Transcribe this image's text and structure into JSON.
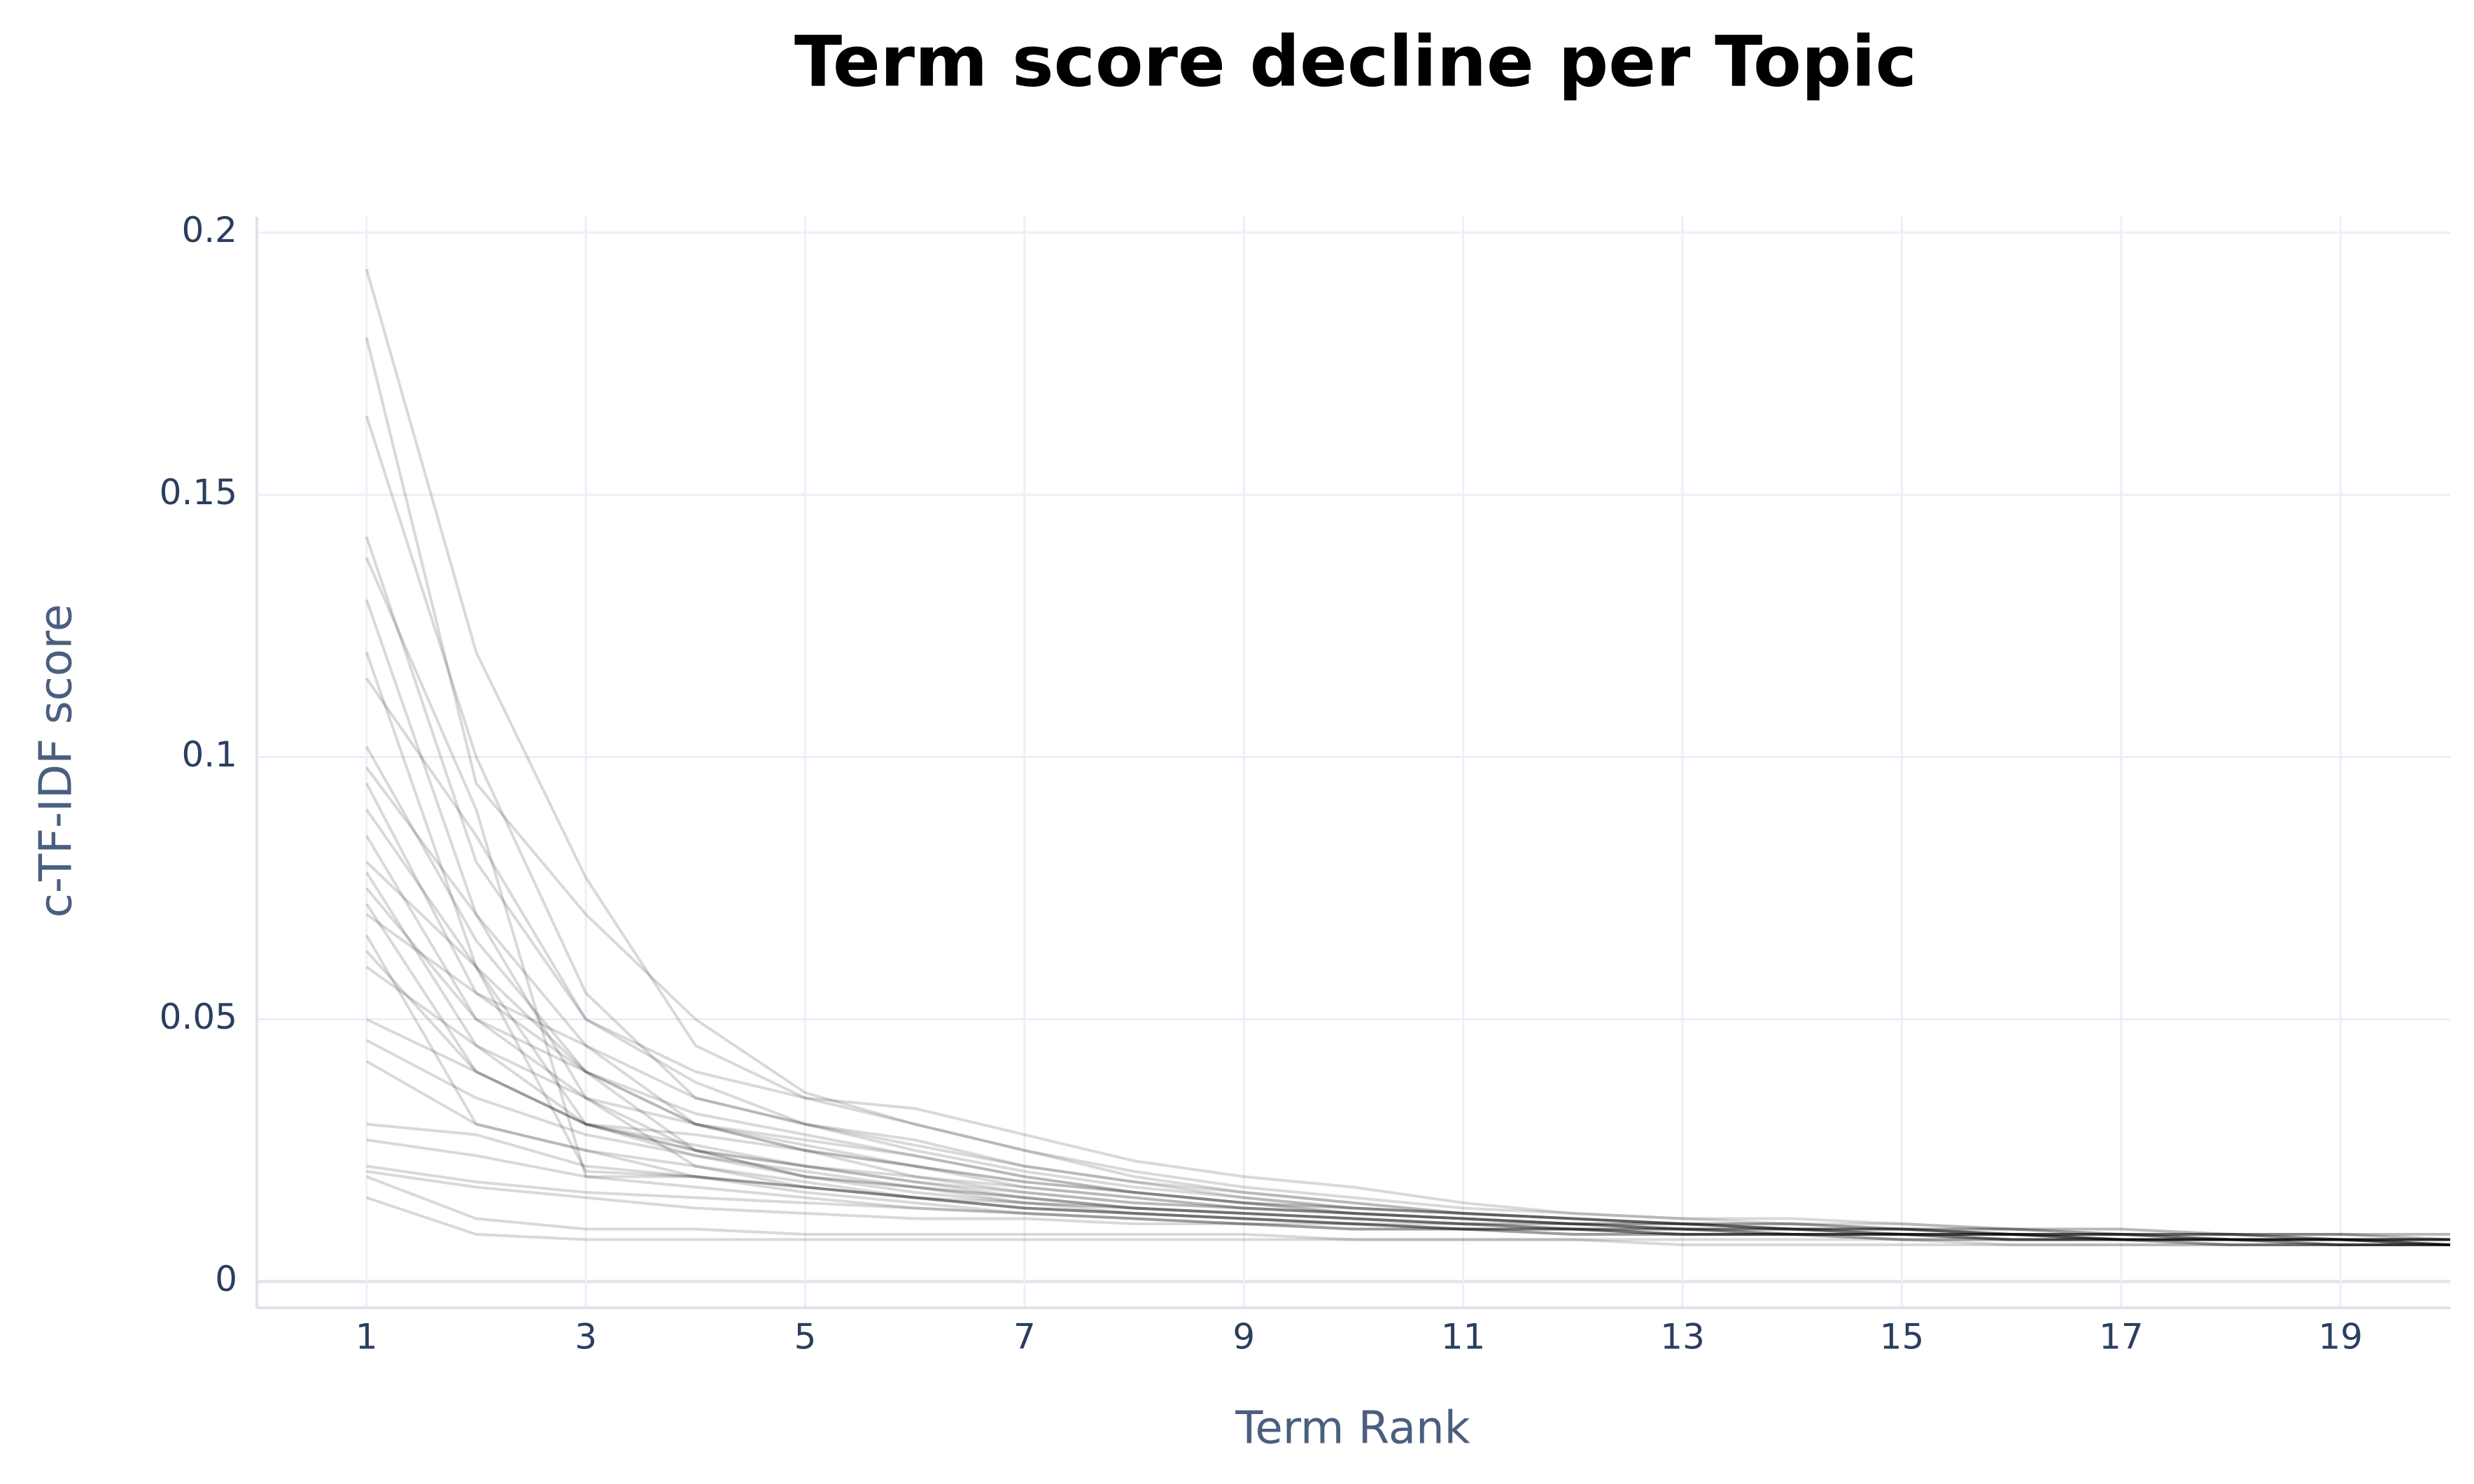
{
  "chart_data": {
    "type": "line",
    "title": "Term score decline per Topic",
    "x_label": "Term Rank",
    "y_label": "c-TF-IDF score",
    "x": [
      1,
      2,
      3,
      4,
      5,
      6,
      7,
      8,
      9,
      10,
      11,
      12,
      13,
      14,
      15,
      16,
      17,
      18,
      19,
      20
    ],
    "xlim": [
      0,
      20
    ],
    "xticks": [
      1,
      3,
      5,
      7,
      9,
      11,
      13,
      15,
      17,
      19
    ],
    "ylim": [
      -0.005,
      0.203
    ],
    "yticks": [
      0,
      0.05,
      0.1,
      0.15,
      0.2
    ],
    "grid": true,
    "series": [
      {
        "color": "rgba(0,0,0,0.15)",
        "values": [
          0.193,
          0.12,
          0.077,
          0.045,
          0.035,
          0.03,
          0.025,
          0.021,
          0.018,
          0.016,
          0.014,
          0.013,
          0.012,
          0.011,
          0.011,
          0.01,
          0.01,
          0.009,
          0.009,
          0.009
        ]
      },
      {
        "color": "rgba(0,0,0,0.15)",
        "values": [
          0.18,
          0.095,
          0.07,
          0.05,
          0.036,
          0.03,
          0.025,
          0.02,
          0.017,
          0.015,
          0.013,
          0.012,
          0.011,
          0.011,
          0.01,
          0.01,
          0.009,
          0.009,
          0.009,
          0.008
        ]
      },
      {
        "color": "rgba(0,0,0,0.15)",
        "values": [
          0.165,
          0.1,
          0.055,
          0.035,
          0.03,
          0.027,
          0.022,
          0.019,
          0.016,
          0.014,
          0.013,
          0.012,
          0.011,
          0.01,
          0.01,
          0.009,
          0.009,
          0.009,
          0.008,
          0.008
        ]
      },
      {
        "color": "rgba(0,0,0,0.15)",
        "values": [
          0.142,
          0.08,
          0.05,
          0.04,
          0.035,
          0.033,
          0.028,
          0.023,
          0.02,
          0.018,
          0.015,
          0.013,
          0.012,
          0.012,
          0.011,
          0.01,
          0.01,
          0.009,
          0.009,
          0.009
        ]
      },
      {
        "color": "rgba(0,0,0,0.15)",
        "values": [
          0.138,
          0.09,
          0.02,
          0.02,
          0.018,
          0.016,
          0.014,
          0.013,
          0.012,
          0.011,
          0.011,
          0.01,
          0.01,
          0.009,
          0.009,
          0.009,
          0.008,
          0.008,
          0.008,
          0.008
        ]
      },
      {
        "color": "rgba(0,0,0,0.15)",
        "values": [
          0.13,
          0.07,
          0.045,
          0.03,
          0.025,
          0.022,
          0.019,
          0.017,
          0.015,
          0.014,
          0.013,
          0.012,
          0.011,
          0.01,
          0.01,
          0.009,
          0.009,
          0.008,
          0.008,
          0.008
        ]
      },
      {
        "color": "rgba(0,0,0,0.15)",
        "values": [
          0.12,
          0.06,
          0.04,
          0.03,
          0.026,
          0.022,
          0.018,
          0.016,
          0.014,
          0.013,
          0.012,
          0.011,
          0.011,
          0.01,
          0.01,
          0.009,
          0.009,
          0.008,
          0.008,
          0.008
        ]
      },
      {
        "color": "rgba(0,0,0,0.15)",
        "values": [
          0.115,
          0.085,
          0.05,
          0.038,
          0.03,
          0.025,
          0.021,
          0.018,
          0.016,
          0.014,
          0.013,
          0.012,
          0.011,
          0.011,
          0.01,
          0.01,
          0.009,
          0.009,
          0.009,
          0.008
        ]
      },
      {
        "color": "rgba(0,0,0,0.15)",
        "values": [
          0.102,
          0.065,
          0.04,
          0.032,
          0.028,
          0.024,
          0.02,
          0.017,
          0.015,
          0.014,
          0.013,
          0.012,
          0.011,
          0.01,
          0.01,
          0.009,
          0.009,
          0.009,
          0.008,
          0.008
        ]
      },
      {
        "color": "rgba(0,0,0,0.15)",
        "values": [
          0.098,
          0.07,
          0.035,
          0.025,
          0.022,
          0.02,
          0.018,
          0.016,
          0.014,
          0.013,
          0.012,
          0.011,
          0.01,
          0.01,
          0.009,
          0.009,
          0.009,
          0.008,
          0.008,
          0.007
        ]
      },
      {
        "color": "rgba(0,0,0,0.15)",
        "values": [
          0.095,
          0.055,
          0.045,
          0.035,
          0.03,
          0.026,
          0.022,
          0.019,
          0.017,
          0.015,
          0.013,
          0.012,
          0.011,
          0.011,
          0.01,
          0.01,
          0.009,
          0.009,
          0.008,
          0.008
        ]
      },
      {
        "color": "rgba(0,0,0,0.15)",
        "values": [
          0.09,
          0.06,
          0.03,
          0.025,
          0.02,
          0.018,
          0.016,
          0.014,
          0.013,
          0.012,
          0.011,
          0.011,
          0.01,
          0.01,
          0.009,
          0.009,
          0.008,
          0.008,
          0.008,
          0.007
        ]
      },
      {
        "color": "rgba(0,0,0,0.15)",
        "values": [
          0.085,
          0.05,
          0.04,
          0.03,
          0.025,
          0.02,
          0.017,
          0.015,
          0.014,
          0.013,
          0.012,
          0.011,
          0.01,
          0.01,
          0.009,
          0.009,
          0.009,
          0.008,
          0.008,
          0.008
        ]
      },
      {
        "color": "rgba(0,0,0,0.15)",
        "values": [
          0.08,
          0.06,
          0.021,
          0.02,
          0.018,
          0.016,
          0.015,
          0.014,
          0.013,
          0.012,
          0.011,
          0.01,
          0.01,
          0.009,
          0.009,
          0.009,
          0.008,
          0.008,
          0.008,
          0.007
        ]
      },
      {
        "color": "rgba(0,0,0,0.15)",
        "values": [
          0.078,
          0.045,
          0.03,
          0.025,
          0.022,
          0.019,
          0.017,
          0.015,
          0.014,
          0.013,
          0.012,
          0.011,
          0.01,
          0.01,
          0.009,
          0.009,
          0.008,
          0.008,
          0.008,
          0.007
        ]
      },
      {
        "color": "rgba(0,0,0,0.15)",
        "values": [
          0.075,
          0.05,
          0.035,
          0.022,
          0.018,
          0.016,
          0.014,
          0.013,
          0.012,
          0.011,
          0.01,
          0.01,
          0.009,
          0.009,
          0.009,
          0.008,
          0.008,
          0.008,
          0.007,
          0.007
        ]
      },
      {
        "color": "rgba(0,0,0,0.15)",
        "values": [
          0.072,
          0.04,
          0.03,
          0.028,
          0.025,
          0.022,
          0.019,
          0.017,
          0.015,
          0.013,
          0.012,
          0.011,
          0.011,
          0.01,
          0.01,
          0.009,
          0.009,
          0.008,
          0.008,
          0.008
        ]
      },
      {
        "color": "rgba(0,0,0,0.15)",
        "values": [
          0.07,
          0.055,
          0.04,
          0.025,
          0.02,
          0.017,
          0.015,
          0.014,
          0.013,
          0.012,
          0.011,
          0.01,
          0.01,
          0.009,
          0.009,
          0.009,
          0.008,
          0.008,
          0.008,
          0.007
        ]
      },
      {
        "color": "rgba(0,0,0,0.15)",
        "values": [
          0.066,
          0.03,
          0.025,
          0.02,
          0.017,
          0.015,
          0.013,
          0.012,
          0.011,
          0.011,
          0.01,
          0.01,
          0.009,
          0.009,
          0.009,
          0.008,
          0.008,
          0.008,
          0.007,
          0.007
        ]
      },
      {
        "color": "rgba(0,0,0,0.15)",
        "values": [
          0.063,
          0.04,
          0.03,
          0.024,
          0.02,
          0.018,
          0.016,
          0.014,
          0.013,
          0.012,
          0.011,
          0.011,
          0.01,
          0.01,
          0.009,
          0.009,
          0.008,
          0.008,
          0.008,
          0.007
        ]
      },
      {
        "color": "rgba(0,0,0,0.15)",
        "values": [
          0.06,
          0.045,
          0.035,
          0.03,
          0.027,
          0.024,
          0.02,
          0.017,
          0.015,
          0.013,
          0.012,
          0.011,
          0.011,
          0.01,
          0.01,
          0.009,
          0.009,
          0.009,
          0.008,
          0.008
        ]
      },
      {
        "color": "rgba(0,0,0,0.15)",
        "values": [
          0.05,
          0.04,
          0.03,
          0.026,
          0.022,
          0.019,
          0.016,
          0.014,
          0.013,
          0.012,
          0.011,
          0.01,
          0.01,
          0.009,
          0.009,
          0.009,
          0.008,
          0.008,
          0.008,
          0.007
        ]
      },
      {
        "color": "rgba(0,0,0,0.15)",
        "values": [
          0.046,
          0.035,
          0.028,
          0.024,
          0.021,
          0.018,
          0.015,
          0.013,
          0.012,
          0.011,
          0.01,
          0.01,
          0.009,
          0.009,
          0.009,
          0.008,
          0.008,
          0.008,
          0.007,
          0.007
        ]
      },
      {
        "color": "rgba(0,0,0,0.15)",
        "values": [
          0.042,
          0.03,
          0.025,
          0.022,
          0.019,
          0.016,
          0.014,
          0.013,
          0.012,
          0.011,
          0.01,
          0.01,
          0.009,
          0.009,
          0.008,
          0.008,
          0.008,
          0.007,
          0.007,
          0.007
        ]
      },
      {
        "color": "rgba(0,0,0,0.15)",
        "values": [
          0.03,
          0.028,
          0.022,
          0.02,
          0.018,
          0.016,
          0.014,
          0.013,
          0.012,
          0.011,
          0.01,
          0.01,
          0.009,
          0.009,
          0.009,
          0.008,
          0.008,
          0.008,
          0.007,
          0.007
        ]
      },
      {
        "color": "rgba(0,0,0,0.15)",
        "values": [
          0.027,
          0.024,
          0.02,
          0.018,
          0.016,
          0.014,
          0.013,
          0.012,
          0.011,
          0.01,
          0.01,
          0.009,
          0.009,
          0.009,
          0.008,
          0.008,
          0.008,
          0.007,
          0.007,
          0.007
        ]
      },
      {
        "color": "rgba(0,0,0,0.15)",
        "values": [
          0.022,
          0.019,
          0.017,
          0.016,
          0.015,
          0.014,
          0.013,
          0.012,
          0.011,
          0.01,
          0.01,
          0.009,
          0.009,
          0.009,
          0.008,
          0.008,
          0.008,
          0.007,
          0.007,
          0.007
        ]
      },
      {
        "color": "rgba(0,0,0,0.15)",
        "values": [
          0.021,
          0.018,
          0.016,
          0.014,
          0.013,
          0.012,
          0.012,
          0.011,
          0.011,
          0.01,
          0.01,
          0.009,
          0.009,
          0.009,
          0.009,
          0.008,
          0.008,
          0.008,
          0.008,
          0.008
        ]
      },
      {
        "color": "rgba(0,0,0,0.15)",
        "values": [
          0.016,
          0.009,
          0.008,
          0.008,
          0.008,
          0.008,
          0.008,
          0.008,
          0.008,
          0.008,
          0.008,
          0.008,
          0.007,
          0.007,
          0.007,
          0.007,
          0.007,
          0.007,
          0.007,
          0.007
        ]
      },
      {
        "color": "rgba(0,0,0,0.15)",
        "values": [
          0.02,
          0.012,
          0.01,
          0.01,
          0.009,
          0.009,
          0.009,
          0.009,
          0.009,
          0.008,
          0.008,
          0.008,
          0.008,
          0.008,
          0.008,
          0.007,
          0.007,
          0.007,
          0.007,
          0.007
        ]
      }
    ]
  }
}
